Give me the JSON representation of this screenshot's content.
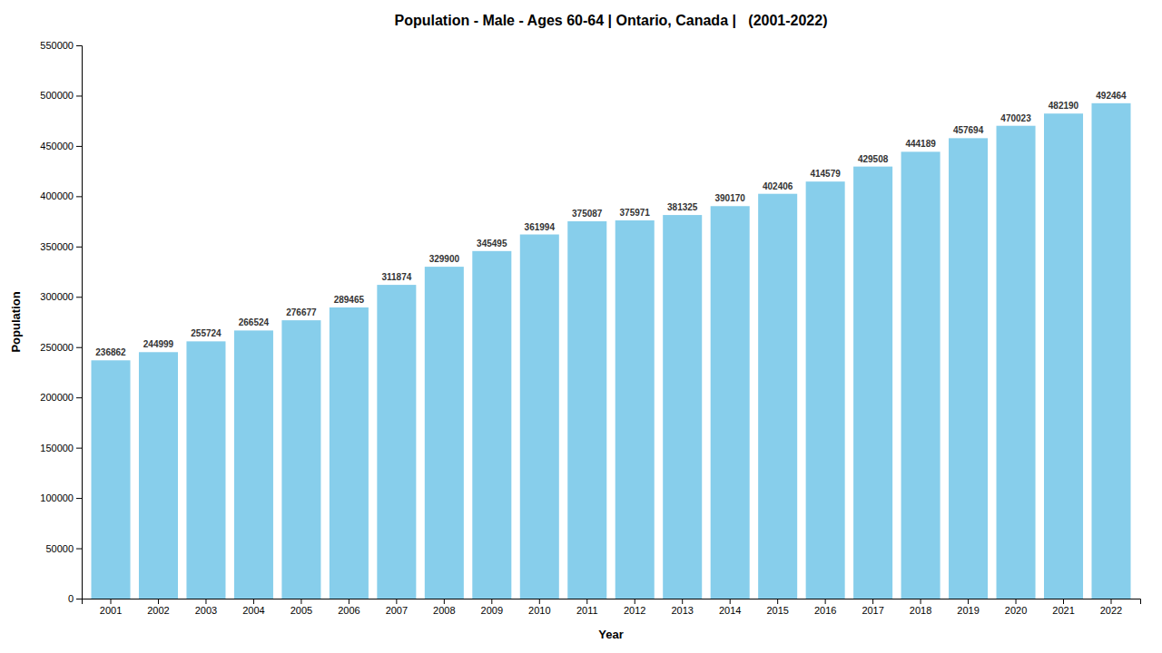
{
  "chart_data": {
    "type": "bar",
    "title": "Population - Male - Ages 60-64 | Ontario, Canada |   (2001-2022)",
    "x_label": "Year",
    "y_label": "Population",
    "categories": [
      "2001",
      "2002",
      "2003",
      "2004",
      "2005",
      "2006",
      "2007",
      "2008",
      "2009",
      "2010",
      "2011",
      "2012",
      "2013",
      "2014",
      "2015",
      "2016",
      "2017",
      "2018",
      "2019",
      "2020",
      "2021",
      "2022"
    ],
    "values": [
      236862,
      244999,
      255724,
      266524,
      276677,
      289465,
      311874,
      329900,
      345495,
      361994,
      375087,
      375971,
      381325,
      390170,
      402406,
      414579,
      429508,
      444189,
      457694,
      470023,
      482190,
      492464
    ],
    "color": "#87CEEB",
    "ylim": [
      0,
      550000
    ],
    "yticks": [
      0,
      50000,
      100000,
      150000,
      200000,
      250000,
      300000,
      350000,
      400000,
      450000,
      500000,
      550000
    ],
    "grid": false,
    "data_labels": true
  }
}
